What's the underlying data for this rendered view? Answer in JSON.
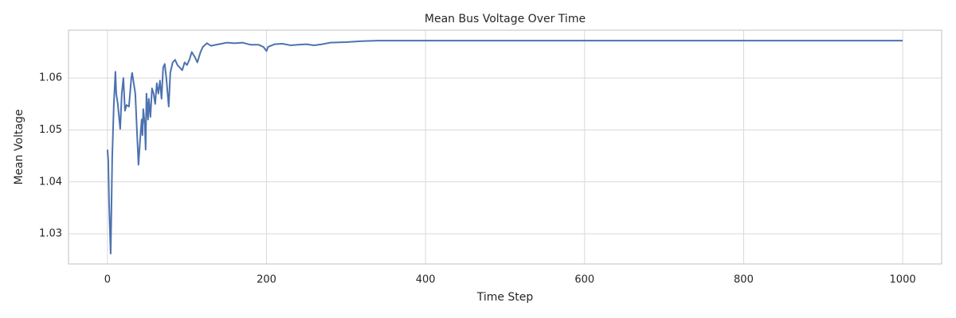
{
  "chart_data": {
    "type": "line",
    "title": "Mean Bus Voltage Over Time",
    "x_label": "Time Step",
    "y_label": "Mean Voltage",
    "x": [
      0,
      1,
      2,
      4,
      5,
      6,
      8,
      10,
      11,
      13,
      16,
      18,
      20,
      22,
      24,
      27,
      30,
      31,
      33,
      35,
      37,
      39,
      41,
      43,
      44,
      45,
      47,
      48,
      49,
      51,
      52,
      54,
      56,
      58,
      60,
      62,
      64,
      66,
      68,
      70,
      72,
      74,
      77,
      79,
      82,
      85,
      88,
      91,
      94,
      97,
      100,
      103,
      106,
      110,
      113,
      117,
      120,
      125,
      130,
      140,
      150,
      160,
      170,
      180,
      190,
      196,
      200,
      202,
      210,
      220,
      230,
      240,
      250,
      260,
      270,
      280,
      300,
      320,
      340,
      400,
      1000
    ],
    "series": [
      {
        "name": "Mean Voltage",
        "color": "#4c72b0",
        "values": [
          1.0462,
          1.044,
          1.036,
          1.0262,
          1.035,
          1.045,
          1.055,
          1.0612,
          1.057,
          1.055,
          1.0502,
          1.057,
          1.06,
          1.0537,
          1.0548,
          1.0545,
          1.06,
          1.061,
          1.059,
          1.057,
          1.05,
          1.0433,
          1.048,
          1.052,
          1.049,
          1.054,
          1.051,
          1.0462,
          1.057,
          1.052,
          1.056,
          1.0525,
          1.058,
          1.057,
          1.055,
          1.059,
          1.057,
          1.0595,
          1.056,
          1.062,
          1.0627,
          1.06,
          1.0545,
          1.061,
          1.063,
          1.0635,
          1.0625,
          1.062,
          1.0615,
          1.063,
          1.0625,
          1.0635,
          1.065,
          1.064,
          1.063,
          1.065,
          1.066,
          1.0667,
          1.0662,
          1.0665,
          1.0668,
          1.0667,
          1.0668,
          1.0664,
          1.0664,
          1.066,
          1.0652,
          1.066,
          1.0665,
          1.0666,
          1.0663,
          1.0664,
          1.0665,
          1.0663,
          1.0665,
          1.0668,
          1.0669,
          1.0671,
          1.0672,
          1.0672,
          1.0672
        ]
      }
    ],
    "xlim": [
      -49,
      1049
    ],
    "ylim": [
      1.0242,
      1.0692
    ],
    "xticks": [
      0,
      200,
      400,
      600,
      800,
      1000
    ],
    "yticks": [
      1.03,
      1.04,
      1.05,
      1.06
    ],
    "grid": true
  }
}
